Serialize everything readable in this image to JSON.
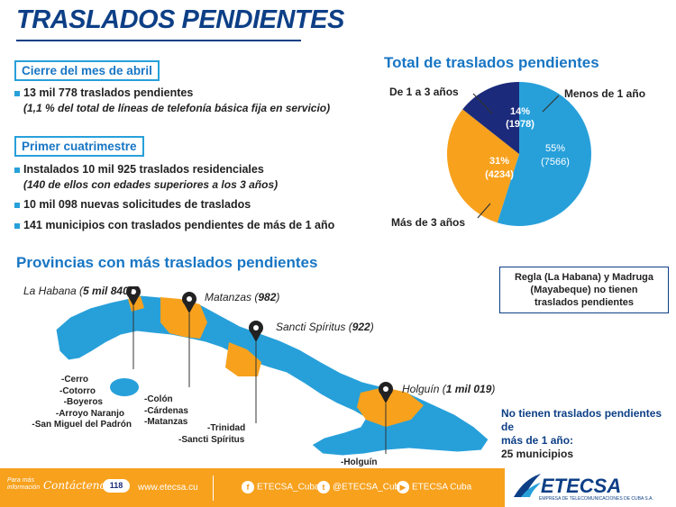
{
  "title": "TRASLADOS PENDIENTES",
  "section1": {
    "heading": "Cierre del mes de abril",
    "line1": "13 mil 778 traslados pendientes",
    "line2": "(1,1 % del total de líneas de telefonía básica fija en servicio)"
  },
  "section2": {
    "heading": "Primer cuatrimestre",
    "line1": "Instalados 10 mil 925 traslados residenciales",
    "line2": "(140 de ellos con edades superiores a los 3 años)",
    "line3": "10 mil 098 nuevas  solicitudes de traslados",
    "line4": "141 municipios con traslados pendientes de más de 1 año"
  },
  "pie": {
    "title": "Total de traslados pendientes",
    "label_1a3": "De 1 a 3 años",
    "label_menos1": "Menos de 1 año",
    "label_mas3": "Más de 3 años",
    "slice_menos1_pct": "55%",
    "slice_menos1_val": "(7566)",
    "slice_mas3_pct": "31%",
    "slice_mas3_val": "(4234)",
    "slice_1a3_pct": "14%",
    "slice_1a3_val": "(1978)",
    "colors": {
      "menos1": "#27a0da",
      "mas3": "#f7a11d",
      "de1a3": "#1b2a7a"
    }
  },
  "chart_data": {
    "type": "pie",
    "title": "Total de traslados pendientes",
    "labels": [
      "Menos de 1 año",
      "Más de 3 años",
      "De 1 a 3 años"
    ],
    "values": [
      7566,
      4234,
      1978
    ],
    "percents": [
      55,
      31,
      14
    ]
  },
  "provinces": {
    "title": "Provincias con más traslados pendientes",
    "habana": {
      "name": "La Habana (",
      "value": "5 mil 840",
      "close": ")"
    },
    "matanzas": {
      "name": "Matanzas (",
      "value": "982",
      "close": ")"
    },
    "sancti": {
      "name": "Sancti Spíritus (",
      "value": "922",
      "close": ")"
    },
    "holguin": {
      "name": "Holguín (",
      "value": "1 mil 019",
      "close": ")"
    },
    "habana_muns": [
      "-Cerro",
      "-Cotorro",
      "-Boyeros",
      "-Arroyo Naranjo",
      "-San Miguel del Padrón"
    ],
    "matanzas_muns": [
      "-Colón",
      "-Cárdenas",
      "-Matanzas"
    ],
    "sancti_muns": [
      "-Trinidad",
      "-Sancti Spíritus"
    ],
    "holguin_muns": [
      "-Holguín"
    ]
  },
  "regla_note": [
    "Regla (La Habana) y Madruga",
    "(Mayabeque) no tienen",
    "traslados pendientes"
  ],
  "no_pendientes": {
    "line1": "No tienen traslados pendientes de",
    "line2": "más de 1 año:",
    "line3": "25 municipios"
  },
  "footer": {
    "para_mas": "Para más",
    "informacion": "información",
    "contactenos": "Contáctenos...",
    "phone": "118",
    "web": "www.etecsa.cu",
    "facebook": "ETECSA_Cuba",
    "twitter": "@ETECSA_Cuba",
    "youtube": "ETECSA Cuba",
    "brand": "ETECSA",
    "brand_sub": "EMPRESA DE TELECOMUNICACIONES DE CUBA S.A."
  }
}
